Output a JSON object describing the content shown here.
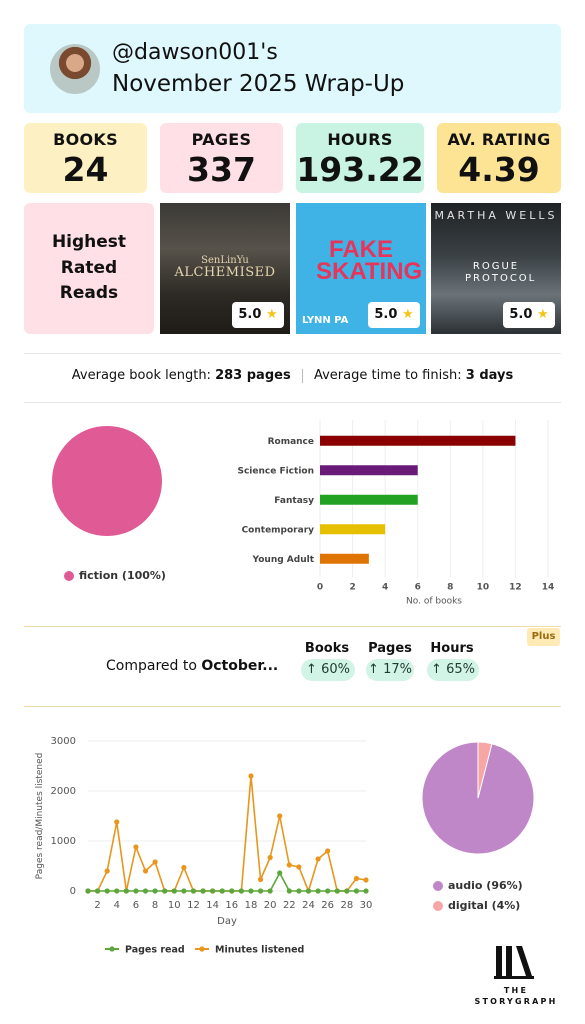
{
  "header": {
    "handle": "@dawson001's",
    "title": "November 2025 Wrap-Up"
  },
  "stats": [
    {
      "label": "BOOKS",
      "value": "24",
      "color": "#fdf0c2"
    },
    {
      "label": "PAGES",
      "value": "337",
      "color": "#ffe0e6"
    },
    {
      "label": "HOURS",
      "value": "193.22",
      "color": "#c9f3e2"
    },
    {
      "label": "AV. RATING",
      "value": "4.39",
      "color": "#fde494"
    }
  ],
  "highest_rated": {
    "heading": "Highest Rated Reads",
    "books": [
      {
        "cover_top": "SenLinYu",
        "cover_title": "ALCHEMISED",
        "rating": "5.0"
      },
      {
        "cover_title": "FAKE SKATING",
        "cover_author": "LYNN PA",
        "rating": "5.0"
      },
      {
        "cover_top": "MARTHA WELLS",
        "cover_title": "ROGUE PROTOCOL",
        "rating": "5.0"
      }
    ]
  },
  "averages": {
    "length_label": "Average book length:",
    "length_value": "283 pages",
    "time_label": "Average time to finish:",
    "time_value": "3 days"
  },
  "fiction_pie": {
    "legend": "fiction (100%)",
    "color": "#e05a96"
  },
  "chart_data": [
    {
      "type": "bar",
      "orientation": "horizontal",
      "categories": [
        "Romance",
        "Science Fiction",
        "Fantasy",
        "Contemporary",
        "Young Adult"
      ],
      "values": [
        12,
        6,
        6,
        4,
        3
      ],
      "colors": [
        "#8b0000",
        "#6a1b7a",
        "#22a122",
        "#e6c000",
        "#e07400"
      ],
      "xlabel": "No. of books",
      "xlim": [
        0,
        14
      ],
      "xticks": [
        0,
        2,
        4,
        6,
        8,
        10,
        12,
        14
      ],
      "grid": true
    },
    {
      "type": "line",
      "x": [
        1,
        2,
        3,
        4,
        5,
        6,
        7,
        8,
        9,
        10,
        11,
        12,
        13,
        14,
        15,
        16,
        17,
        18,
        19,
        20,
        21,
        22,
        23,
        24,
        25,
        26,
        27,
        28,
        29,
        30
      ],
      "xticks": [
        2,
        4,
        6,
        8,
        10,
        12,
        14,
        16,
        18,
        20,
        22,
        24,
        26,
        28,
        30
      ],
      "xlabel": "Day",
      "ylabel": "Pages read/Minutes listened",
      "ylim": [
        0,
        3000
      ],
      "yticks": [
        0,
        1000,
        2000,
        3000
      ],
      "series": [
        {
          "name": "Pages read",
          "color": "#5ca63c",
          "values": [
            0,
            0,
            0,
            0,
            0,
            0,
            0,
            0,
            0,
            0,
            0,
            0,
            0,
            0,
            0,
            0,
            0,
            0,
            0,
            0,
            360,
            0,
            0,
            0,
            0,
            0,
            0,
            0,
            0,
            0
          ]
        },
        {
          "name": "Minutes listened",
          "color": "#e8961e",
          "values": [
            0,
            0,
            400,
            1380,
            0,
            880,
            400,
            580,
            0,
            0,
            470,
            0,
            0,
            0,
            0,
            0,
            0,
            2300,
            230,
            670,
            1500,
            520,
            480,
            0,
            640,
            800,
            0,
            0,
            250,
            220
          ]
        }
      ],
      "grid": true
    },
    {
      "type": "pie",
      "labels": [
        "audio (96%)",
        "digital (4%)"
      ],
      "values": [
        96,
        4
      ],
      "colors": [
        "#c087c8",
        "#f7a5a5"
      ]
    }
  ],
  "compared": {
    "label_prefix": "Compared to",
    "label_month": "October...",
    "plus_badge": "Plus",
    "items": [
      {
        "head": "Books",
        "arrow": "↑",
        "value": "60%"
      },
      {
        "head": "Pages",
        "arrow": "↑",
        "value": "17%"
      },
      {
        "head": "Hours",
        "arrow": "↑",
        "value": "65%"
      }
    ]
  },
  "logo": {
    "line1": "THE",
    "line2": "STORYGRAPH"
  }
}
